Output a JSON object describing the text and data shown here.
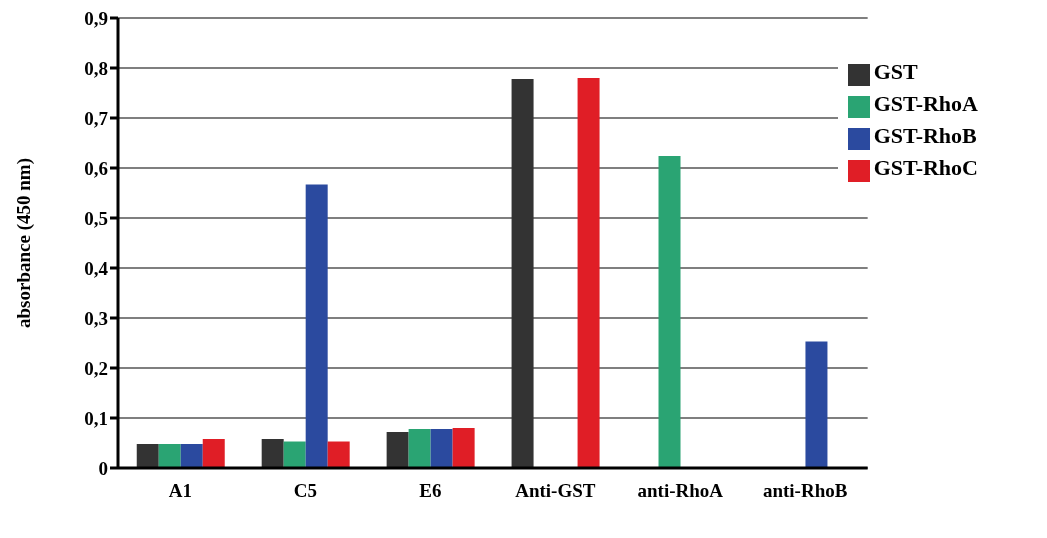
{
  "chart_data": {
    "type": "bar",
    "ylabel": "absorbance (450 nm)",
    "categories": [
      "A1",
      "C5",
      "E6",
      "Anti-GST",
      "anti-RhoA",
      "anti-RhoB"
    ],
    "series": [
      {
        "name": "GST",
        "color": "#333333",
        "values": [
          0.048,
          0.058,
          0.072,
          0.778,
          null,
          null
        ]
      },
      {
        "name": "GST-RhoA",
        "color": "#2aa473",
        "values": [
          0.048,
          0.053,
          0.078,
          null,
          0.624,
          null
        ]
      },
      {
        "name": "GST-RhoB",
        "color": "#2b4a9f",
        "values": [
          0.048,
          0.567,
          0.078,
          null,
          null,
          0.253
        ]
      },
      {
        "name": "GST-RhoC",
        "color": "#e01e26",
        "values": [
          0.058,
          0.053,
          0.08,
          0.78,
          null,
          null
        ]
      }
    ],
    "ylim": [
      0,
      0.9
    ],
    "yticks": [
      {
        "value": 0,
        "label": "0"
      },
      {
        "value": 0.1,
        "label": "0,1"
      },
      {
        "value": 0.2,
        "label": "0,2"
      },
      {
        "value": 0.3,
        "label": "0,3"
      },
      {
        "value": 0.4,
        "label": "0,4"
      },
      {
        "value": 0.5,
        "label": "0,5"
      },
      {
        "value": 0.6,
        "label": "0,6"
      },
      {
        "value": 0.7,
        "label": "0,7"
      },
      {
        "value": 0.8,
        "label": "0,8"
      },
      {
        "value": 0.9,
        "label": "0,9"
      }
    ],
    "grid": "y",
    "legend": "top right"
  }
}
